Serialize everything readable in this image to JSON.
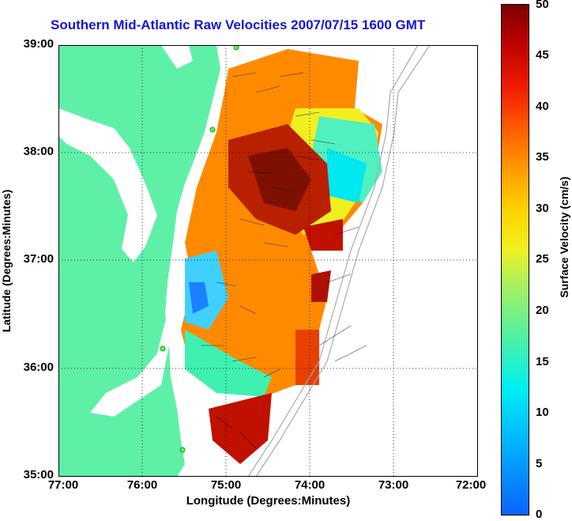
{
  "title": "Southern Mid-Atlantic Raw Velocities 2007/07/15 1600 GMT",
  "xlabel": "Longitude (Degrees:Minutes)",
  "ylabel": "Latitude (Degrees:Minutes)",
  "colorbar_label": "Surface Velocity (cm/s)",
  "x_ticks": [
    "77:00",
    "76:00",
    "75:00",
    "74:00",
    "73:00",
    "72:00"
  ],
  "y_ticks": [
    "39:00",
    "38:00",
    "37:00",
    "36:00",
    "35:00"
  ],
  "colorbar_ticks": [
    "50",
    "45",
    "40",
    "35",
    "30",
    "25",
    "20",
    "15",
    "10",
    "5",
    "0"
  ],
  "colors": {
    "title": "#1414d8",
    "land": "#5ff0a8",
    "low": "#0b63ff",
    "high": "#7d0000"
  },
  "map_extent": {
    "lon": [
      -77,
      -72
    ],
    "lat": [
      35,
      39
    ]
  },
  "colorbar_range": [
    0,
    50
  ]
}
